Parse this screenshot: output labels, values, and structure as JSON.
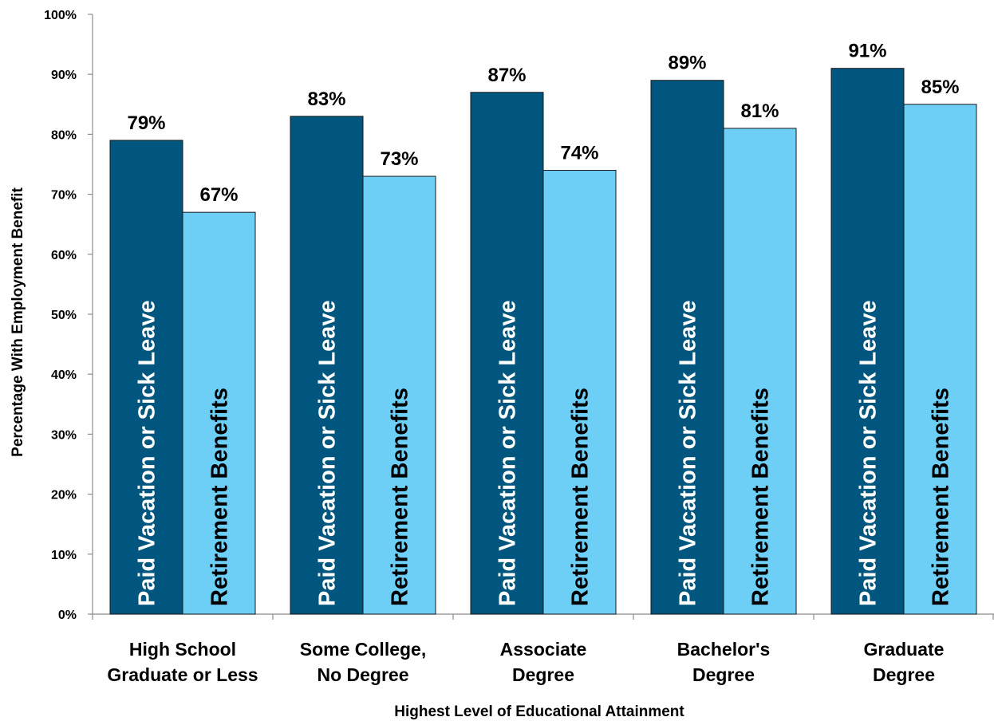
{
  "colors": {
    "paid_vacation": "#00567E",
    "retirement": "#6DCFF6",
    "axis": "#8C8C8C"
  },
  "chart_data": {
    "type": "bar",
    "categories": [
      "High School Graduate or Less",
      "Some College, No Degree",
      "Associate Degree",
      "Bachelor's Degree",
      "Graduate Degree"
    ],
    "category_lines": [
      [
        "High School",
        "Graduate or Less"
      ],
      [
        "Some College,",
        "No Degree"
      ],
      [
        "Associate",
        "Degree"
      ],
      [
        "Bachelor's",
        "Degree"
      ],
      [
        "Graduate",
        "Degree"
      ]
    ],
    "series": [
      {
        "name": "Paid Vacation or Sick Leave",
        "values": [
          79,
          83,
          87,
          89,
          91
        ],
        "labels": [
          "79%",
          "83%",
          "87%",
          "89%",
          "91%"
        ]
      },
      {
        "name": "Retirement Benefits",
        "values": [
          67,
          73,
          74,
          81,
          85
        ],
        "labels": [
          "67%",
          "73%",
          "74%",
          "81%",
          "85%"
        ]
      }
    ],
    "xlabel": "Highest Level of Educational Attainment",
    "ylabel": "Percentage With Employment Benefit",
    "ylim": [
      0,
      100
    ],
    "yticks": [
      0,
      10,
      20,
      30,
      40,
      50,
      60,
      70,
      80,
      90,
      100
    ],
    "ytick_labels": [
      "0%",
      "10%",
      "20%",
      "30%",
      "40%",
      "50%",
      "60%",
      "70%",
      "80%",
      "90%",
      "100%"
    ],
    "grid": false,
    "legend": "none"
  }
}
